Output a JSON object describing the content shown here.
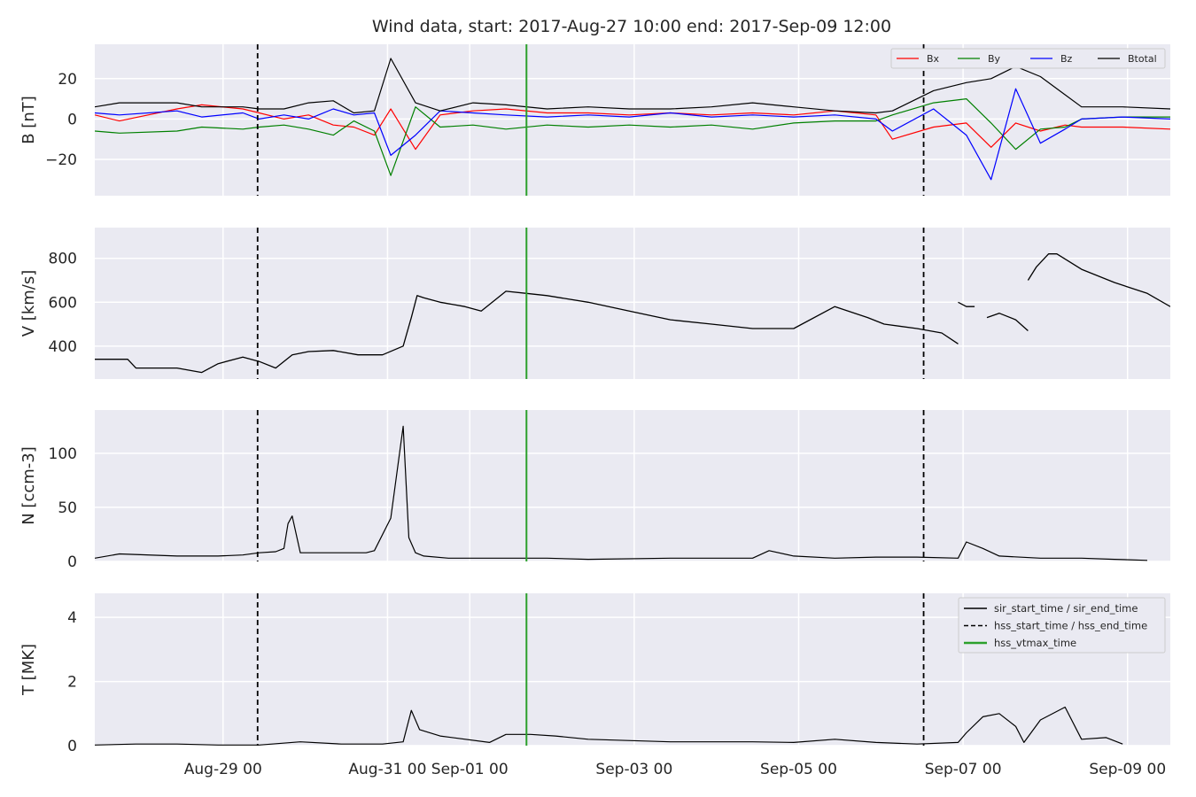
{
  "figure": {
    "title": "Wind data, start: 2017-Aug-27 10:00  end: 2017-Sep-09 12:00"
  },
  "chart_data": [
    {
      "type": "line",
      "ylabel": "B [nT]",
      "ylim": [
        -38,
        37
      ],
      "yticks": [
        {
          "value": -20,
          "label": "−20"
        },
        {
          "value": 0,
          "label": "0"
        },
        {
          "value": 20,
          "label": "20"
        }
      ],
      "legend": {
        "placement": "top-right",
        "columns": 4
      },
      "series": [
        {
          "name": "Bx",
          "color": "#ff0000",
          "x": [
            0,
            0.3,
            1,
            1.3,
            1.8,
            2,
            2.3,
            2.6,
            2.9,
            3.15,
            3.4,
            3.6,
            3.9,
            4.2,
            4.6,
            5,
            5.5,
            6,
            6.5,
            7,
            7.5,
            8,
            8.5,
            9,
            9.5,
            9.7,
            10.2,
            10.6,
            10.9,
            11.2,
            11.5,
            11.8,
            12,
            12.5,
            13.08
          ],
          "y": [
            2,
            -1,
            5,
            7,
            5,
            3,
            0,
            2,
            -3,
            -4,
            -8,
            5,
            -15,
            2,
            4,
            5,
            3,
            3,
            2,
            3,
            2,
            3,
            2,
            4,
            2,
            -10,
            -4,
            -2,
            -14,
            -2,
            -6,
            -3,
            -4,
            -4,
            -5
          ]
        },
        {
          "name": "By",
          "color": "#008000",
          "x": [
            0,
            0.3,
            1,
            1.3,
            1.8,
            2,
            2.3,
            2.6,
            2.9,
            3.15,
            3.4,
            3.6,
            3.9,
            4.2,
            4.6,
            5,
            5.5,
            6,
            6.5,
            7,
            7.5,
            8,
            8.5,
            9,
            9.5,
            9.7,
            10.2,
            10.6,
            10.9,
            11.2,
            11.5,
            11.8,
            12,
            12.5,
            13.08
          ],
          "y": [
            -6,
            -7,
            -6,
            -4,
            -5,
            -4,
            -3,
            -5,
            -8,
            -1,
            -6,
            -28,
            6,
            -4,
            -3,
            -5,
            -3,
            -4,
            -3,
            -4,
            -3,
            -5,
            -2,
            -1,
            -1,
            2,
            8,
            10,
            -2,
            -15,
            -5,
            -4,
            0,
            1,
            1
          ]
        },
        {
          "name": "Bz",
          "color": "#0000ff",
          "x": [
            0,
            0.3,
            1,
            1.3,
            1.8,
            2,
            2.3,
            2.6,
            2.9,
            3.15,
            3.4,
            3.6,
            3.9,
            4.2,
            4.6,
            5,
            5.5,
            6,
            6.5,
            7,
            7.5,
            8,
            8.5,
            9,
            9.5,
            9.7,
            10.2,
            10.6,
            10.9,
            11.2,
            11.5,
            11.8,
            12,
            12.5,
            13.08
          ],
          "y": [
            3,
            2,
            4,
            1,
            3,
            0,
            2,
            0,
            5,
            2,
            3,
            -18,
            -8,
            4,
            3,
            2,
            1,
            2,
            1,
            3,
            1,
            2,
            1,
            2,
            0,
            -6,
            5,
            -8,
            -30,
            15,
            -12,
            -5,
            0,
            1,
            0
          ]
        },
        {
          "name": "Btotal",
          "color": "#000000",
          "x": [
            0,
            0.3,
            1,
            1.3,
            1.8,
            2,
            2.3,
            2.6,
            2.9,
            3.15,
            3.4,
            3.6,
            3.9,
            4.2,
            4.6,
            5,
            5.5,
            6,
            6.5,
            7,
            7.5,
            8,
            8.5,
            9,
            9.5,
            9.7,
            10.2,
            10.6,
            10.9,
            11.2,
            11.5,
            11.8,
            12,
            12.5,
            13.08
          ],
          "y": [
            6,
            8,
            8,
            6,
            6,
            5,
            5,
            8,
            9,
            3,
            4,
            30,
            8,
            4,
            8,
            7,
            5,
            6,
            5,
            5,
            6,
            8,
            6,
            4,
            3,
            4,
            14,
            18,
            20,
            26,
            21,
            12,
            6,
            6,
            5
          ]
        }
      ],
      "vlines": [
        {
          "x": 1.98,
          "style": "dashed",
          "color": "#000000"
        },
        {
          "x": 5.25,
          "style": "solid",
          "color": "#2ca02c"
        },
        {
          "x": 10.08,
          "style": "dashed",
          "color": "#000000"
        }
      ]
    },
    {
      "type": "line",
      "ylabel": "V [km/s]",
      "ylim": [
        250,
        940
      ],
      "yticks": [
        {
          "value": 400,
          "label": "400"
        },
        {
          "value": 600,
          "label": "600"
        },
        {
          "value": 800,
          "label": "800"
        }
      ],
      "series": [
        {
          "color": "#000000",
          "segments": [
            {
              "x": [
                0,
                0.4,
                0.5,
                1.0,
                1.3,
                1.5,
                1.8,
                2.0,
                2.2,
                2.4,
                2.6,
                2.9,
                3.2,
                3.5,
                3.75,
                3.85,
                3.92,
                4.0,
                4.2,
                4.5,
                4.7,
                5.0,
                5.25,
                5.5,
                6.0,
                6.5,
                7.0,
                7.5,
                8.0,
                8.5,
                9.0,
                9.4,
                9.6,
                10.0,
                10.3,
                10.5
              ],
              "y": [
                340,
                340,
                300,
                300,
                280,
                320,
                350,
                330,
                300,
                360,
                375,
                380,
                360,
                360,
                400,
                530,
                630,
                620,
                600,
                580,
                560,
                650,
                640,
                630,
                600,
                560,
                520,
                500,
                480,
                480,
                580,
                530,
                500,
                480,
                460,
                410
              ]
            },
            {
              "x": [
                10.5,
                10.6,
                10.7
              ],
              "y": [
                600,
                580,
                580
              ]
            },
            {
              "x": [
                10.85,
                11.0,
                11.2,
                11.35
              ],
              "y": [
                530,
                550,
                520,
                470
              ]
            },
            {
              "x": [
                11.35,
                11.45,
                11.6,
                11.7,
                12.0,
                12.4,
                12.8,
                13.08
              ],
              "y": [
                700,
                760,
                820,
                820,
                750,
                690,
                640,
                580
              ]
            }
          ]
        }
      ],
      "vlines": [
        {
          "x": 1.98,
          "style": "dashed",
          "color": "#000000"
        },
        {
          "x": 5.25,
          "style": "solid",
          "color": "#2ca02c"
        },
        {
          "x": 10.08,
          "style": "dashed",
          "color": "#000000"
        }
      ]
    },
    {
      "type": "line",
      "ylabel": "N [ccm-3]",
      "ylim": [
        0,
        140
      ],
      "yticks": [
        {
          "value": 0,
          "label": "0"
        },
        {
          "value": 50,
          "label": "50"
        },
        {
          "value": 100,
          "label": "100"
        }
      ],
      "series": [
        {
          "color": "#000000",
          "x": [
            0,
            0.3,
            1,
            1.5,
            1.8,
            2.0,
            2.2,
            2.3,
            2.35,
            2.4,
            2.5,
            3.3,
            3.4,
            3.6,
            3.75,
            3.82,
            3.9,
            4.0,
            4.3,
            4.8,
            5.5,
            6.0,
            7.0,
            8.0,
            8.2,
            8.5,
            9.0,
            9.5,
            10.0,
            10.5,
            10.6,
            10.8,
            11.0,
            11.5,
            12.0,
            12.4,
            12.8
          ],
          "y": [
            3,
            7,
            5,
            5,
            6,
            8,
            9,
            12,
            35,
            42,
            8,
            8,
            10,
            40,
            125,
            22,
            8,
            5,
            3,
            3,
            3,
            2,
            3,
            3,
            10,
            5,
            3,
            4,
            4,
            3,
            18,
            12,
            5,
            3,
            3,
            2,
            1
          ]
        }
      ],
      "vlines": [
        {
          "x": 1.98,
          "style": "dashed",
          "color": "#000000"
        },
        {
          "x": 5.25,
          "style": "solid",
          "color": "#2ca02c"
        },
        {
          "x": 10.08,
          "style": "dashed",
          "color": "#000000"
        }
      ]
    },
    {
      "type": "line",
      "ylabel": "T [MK]",
      "ylim": [
        0,
        4.75
      ],
      "yticks": [
        {
          "value": 0,
          "label": "0"
        },
        {
          "value": 2,
          "label": "2"
        },
        {
          "value": 4,
          "label": "4"
        }
      ],
      "legend": {
        "placement": "top-right",
        "entries": [
          {
            "label": "sir_start_time / sir_end_time",
            "style": "solid",
            "color": "#000000"
          },
          {
            "label": "hss_start_time / hss_end_time",
            "style": "dashed",
            "color": "#000000"
          },
          {
            "label": "hss_vtmax_time",
            "style": "solid",
            "color": "#2ca02c"
          }
        ]
      },
      "series": [
        {
          "color": "#000000",
          "x": [
            0,
            0.5,
            1,
            1.5,
            2,
            2.5,
            3,
            3.5,
            3.75,
            3.85,
            3.95,
            4.2,
            4.8,
            5.0,
            5.3,
            5.6,
            6.0,
            7.0,
            8.0,
            8.5,
            9.0,
            9.5,
            10.0,
            10.5,
            10.6,
            10.8,
            11.0,
            11.2,
            11.3,
            11.5,
            11.8,
            12.0,
            12.3,
            12.5
          ],
          "y": [
            0.02,
            0.05,
            0.05,
            0.02,
            0.02,
            0.12,
            0.05,
            0.05,
            0.12,
            1.1,
            0.5,
            0.3,
            0.1,
            0.35,
            0.35,
            0.3,
            0.2,
            0.12,
            0.12,
            0.1,
            0.2,
            0.1,
            0.05,
            0.1,
            0.4,
            0.9,
            1.0,
            0.6,
            0.1,
            0.8,
            1.2,
            0.2,
            0.25,
            0.05
          ]
        }
      ],
      "vlines": [
        {
          "x": 1.98,
          "style": "dashed",
          "color": "#000000"
        },
        {
          "x": 5.25,
          "style": "solid",
          "color": "#2ca02c"
        },
        {
          "x": 10.08,
          "style": "dashed",
          "color": "#000000"
        }
      ]
    }
  ],
  "x_axis": {
    "range": [
      0,
      13.08
    ],
    "ticks": [
      {
        "value": 1.56,
        "label": "Aug-29 00"
      },
      {
        "value": 3.56,
        "label": "Aug-31 00"
      },
      {
        "value": 4.56,
        "label": "Sep-01 00"
      },
      {
        "value": 6.56,
        "label": "Sep-03 00"
      },
      {
        "value": 8.56,
        "label": "Sep-05 00"
      },
      {
        "value": 10.56,
        "label": "Sep-07 00"
      },
      {
        "value": 12.56,
        "label": "Sep-09 00"
      }
    ]
  },
  "style": {
    "panel_bg": "#eaeaf2",
    "grid_color": "#ffffff",
    "grid": true
  }
}
